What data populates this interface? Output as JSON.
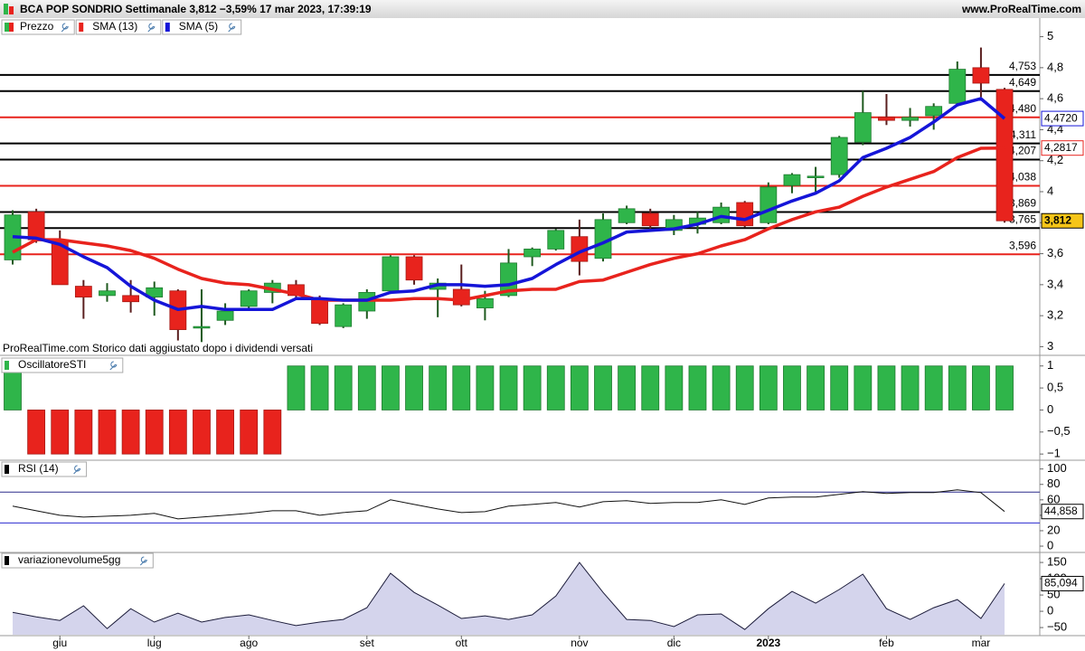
{
  "header": {
    "title": "BCA POP SONDRIO Settimanale 3,812 −3,59% 17 mar 2023, 17:39:19",
    "site": "www.ProRealTime.com"
  },
  "chart_data": [
    {
      "type": "candlestick",
      "note": "ProRealTime.com  Storico dati aggiustato dopo i dividendi versati",
      "ylim": [
        2.95,
        5.12
      ],
      "yticks": [
        3,
        {
          "value": 3.2,
          "label": "3,2"
        },
        {
          "value": 3.4,
          "label": "3,4"
        },
        {
          "value": 3.6,
          "label": "3,6"
        },
        {
          "value": 3.8,
          "label": "3,8"
        },
        4,
        {
          "value": 4.2,
          "label": "4,2"
        },
        {
          "value": 4.4,
          "label": "4,4"
        },
        {
          "value": 4.6,
          "label": "4,6"
        },
        {
          "value": 4.8,
          "label": "4,8"
        },
        5
      ],
      "price": {
        "name": "Prezzo",
        "color_up": "#2fb54a",
        "color_down": "#e8231d",
        "open": [
          3.56,
          3.87,
          3.69,
          3.39,
          3.33,
          3.33,
          3.32,
          3.36,
          3.12,
          3.17,
          3.26,
          3.35,
          3.4,
          3.31,
          3.13,
          3.23,
          3.36,
          3.58,
          3.37,
          3.37,
          3.25,
          3.33,
          3.58,
          3.63,
          3.71,
          3.57,
          3.8,
          3.86,
          3.75,
          3.79,
          3.8,
          3.93,
          3.8,
          4.04,
          4.09,
          4.11,
          4.32,
          4.48,
          4.46,
          4.49,
          4.57,
          4.8,
          4.66
        ],
        "high": [
          3.88,
          3.89,
          3.75,
          3.43,
          3.41,
          3.43,
          3.42,
          3.37,
          3.37,
          3.28,
          3.37,
          3.43,
          3.43,
          3.33,
          3.28,
          3.37,
          3.59,
          3.59,
          3.44,
          3.53,
          3.36,
          3.63,
          3.64,
          3.76,
          3.82,
          3.86,
          3.91,
          3.89,
          3.85,
          3.87,
          3.93,
          3.94,
          4.06,
          4.12,
          4.16,
          4.36,
          4.65,
          4.63,
          4.54,
          4.57,
          4.84,
          4.93,
          4.67
        ],
        "low": [
          3.53,
          3.67,
          3.4,
          3.18,
          3.29,
          3.22,
          3.2,
          3.04,
          3.03,
          3.14,
          3.24,
          3.28,
          3.3,
          3.14,
          3.12,
          3.18,
          3.34,
          3.4,
          3.19,
          3.26,
          3.17,
          3.32,
          3.52,
          3.62,
          3.46,
          3.55,
          3.79,
          3.76,
          3.72,
          3.73,
          3.79,
          3.77,
          3.79,
          3.99,
          4.0,
          4.09,
          4.3,
          4.43,
          4.42,
          4.4,
          4.55,
          4.61,
          3.8
        ],
        "close": [
          3.85,
          3.69,
          3.4,
          3.32,
          3.36,
          3.29,
          3.38,
          3.11,
          3.13,
          3.23,
          3.36,
          3.41,
          3.33,
          3.15,
          3.27,
          3.35,
          3.58,
          3.43,
          3.41,
          3.27,
          3.31,
          3.54,
          3.63,
          3.75,
          3.55,
          3.82,
          3.89,
          3.78,
          3.82,
          3.83,
          3.9,
          3.78,
          4.03,
          4.11,
          4.1,
          4.35,
          4.51,
          4.46,
          4.48,
          4.55,
          4.79,
          4.7,
          3.812
        ]
      },
      "series": [
        {
          "name": "SMA (13)",
          "color": "#e8231d",
          "values": [
            3.61,
            3.69,
            3.69,
            3.67,
            3.65,
            3.62,
            3.57,
            3.5,
            3.44,
            3.41,
            3.4,
            3.37,
            3.34,
            3.3,
            3.3,
            3.3,
            3.3,
            3.31,
            3.31,
            3.3,
            3.33,
            3.36,
            3.37,
            3.37,
            3.42,
            3.43,
            3.48,
            3.53,
            3.57,
            3.6,
            3.65,
            3.69,
            3.76,
            3.82,
            3.87,
            3.9,
            3.97,
            4.03,
            4.08,
            4.13,
            4.22,
            4.28,
            4.2817
          ]
        },
        {
          "name": "SMA (5)",
          "color": "#1515d8",
          "values": [
            3.71,
            3.7,
            3.66,
            3.58,
            3.51,
            3.39,
            3.3,
            3.24,
            3.26,
            3.24,
            3.24,
            3.24,
            3.31,
            3.31,
            3.3,
            3.3,
            3.35,
            3.36,
            3.4,
            3.4,
            3.39,
            3.4,
            3.44,
            3.53,
            3.61,
            3.67,
            3.74,
            3.75,
            3.76,
            3.79,
            3.84,
            3.82,
            3.88,
            3.94,
            3.99,
            4.07,
            4.22,
            4.28,
            4.35,
            4.45,
            4.56,
            4.6,
            4.472
          ]
        }
      ],
      "levels": [
        {
          "value": 4.753,
          "label": "4,753",
          "color": "#000000"
        },
        {
          "value": 4.649,
          "label": "4,649",
          "color": "#000000"
        },
        {
          "value": 4.48,
          "label": "4,480",
          "color": "#e8231d"
        },
        {
          "value": 4.311,
          "label": "4,311",
          "color": "#000000"
        },
        {
          "value": 4.207,
          "label": "4,207",
          "color": "#000000"
        },
        {
          "value": 4.038,
          "label": "4,038",
          "color": "#e8231d"
        },
        {
          "value": 3.869,
          "label": "3,869",
          "color": "#000000"
        },
        {
          "value": 3.765,
          "label": "3,765",
          "color": "#000000"
        },
        {
          "value": 3.596,
          "label": "3,596",
          "color": "#e8231d"
        }
      ],
      "tags": [
        {
          "value": 4.472,
          "label": "4,4720",
          "color": "#1515d8",
          "fill": "#ffffff"
        },
        {
          "value": 4.2817,
          "label": "4,2817",
          "color": "#e8231d",
          "fill": "#ffffff"
        },
        {
          "value": 3.812,
          "label": "3,812",
          "color": "#000000",
          "fill": "#f5c518"
        }
      ]
    },
    {
      "type": "bar",
      "name": "OscillatoreSTI",
      "color_up": "#2fb54a",
      "color_down": "#e8231d",
      "values": [
        1,
        -1,
        -1,
        -1,
        -1,
        -1,
        -1,
        -1,
        -1,
        -1,
        -1,
        -1,
        1,
        1,
        1,
        1,
        1,
        1,
        1,
        1,
        1,
        1,
        1,
        1,
        1,
        1,
        1,
        1,
        1,
        1,
        1,
        1,
        1,
        1,
        1,
        1,
        1,
        1,
        1,
        1,
        1,
        1,
        1
      ],
      "ylim": [
        -1.12,
        1.2
      ],
      "yticks": [
        1,
        {
          "value": 0.5,
          "label": "0,5"
        },
        0,
        {
          "value": -0.5,
          "label": "−0,5"
        },
        {
          "value": -1,
          "label": "−1"
        }
      ]
    },
    {
      "type": "line",
      "name": "RSI (14)",
      "color": "#111111",
      "values": [
        51.8,
        45.9,
        40,
        37.6,
        38.8,
        40,
        42.4,
        35.3,
        37.6,
        40,
        42.4,
        45.9,
        45.9,
        40,
        43.5,
        45.9,
        60,
        54.1,
        48.2,
        43.5,
        44.7,
        51.8,
        54.1,
        56.5,
        50.6,
        57.6,
        58.8,
        55.3,
        56.5,
        56.5,
        60,
        54.1,
        62.4,
        63.5,
        63.5,
        67.1,
        70.6,
        68.2,
        69.4,
        69.4,
        72.9,
        69.4,
        44.858
      ],
      "levels": [
        {
          "value": 70,
          "color": "#2c2c8c"
        },
        {
          "value": 30,
          "color": "#2a2ad0"
        }
      ],
      "ylim": [
        -7,
        109
      ],
      "yticks": [
        100,
        80,
        60,
        40,
        20,
        0
      ],
      "tags": [
        {
          "value": 44.858,
          "label": "44,858",
          "color": "#000000",
          "fill": "#ffffff"
        }
      ]
    },
    {
      "type": "area",
      "name": "variazionevolume5gg",
      "color": "#1c1c3a",
      "fill": "#d4d4ec",
      "values": [
        -3,
        -17,
        -28,
        17,
        -53,
        8,
        -33,
        -6,
        -33,
        -19,
        -11,
        -28,
        -44,
        -33,
        -25,
        11,
        117,
        58,
        19,
        -22,
        -14,
        -25,
        -11,
        47,
        150,
        58,
        -25,
        -28,
        -47,
        -11,
        -8,
        -56,
        8,
        61,
        25,
        67,
        114,
        8,
        -25,
        11,
        36,
        -22,
        85.094
      ],
      "ylim": [
        -72,
        178
      ],
      "yticks": [
        150,
        100,
        50,
        0,
        {
          "value": -50,
          "label": "−50"
        }
      ],
      "tags": [
        {
          "value": 85.094,
          "label": "85,094",
          "color": "#000000",
          "fill": "#ffffff"
        }
      ],
      "categories": [
        null,
        null,
        "giu",
        null,
        null,
        null,
        "lug",
        null,
        null,
        null,
        "ago",
        null,
        null,
        null,
        null,
        "set",
        null,
        null,
        null,
        "ott",
        null,
        null,
        null,
        null,
        "nov",
        null,
        null,
        null,
        "dic",
        null,
        null,
        null,
        "2023",
        null,
        null,
        null,
        null,
        "feb",
        null,
        null,
        null,
        "mar",
        null
      ]
    }
  ]
}
